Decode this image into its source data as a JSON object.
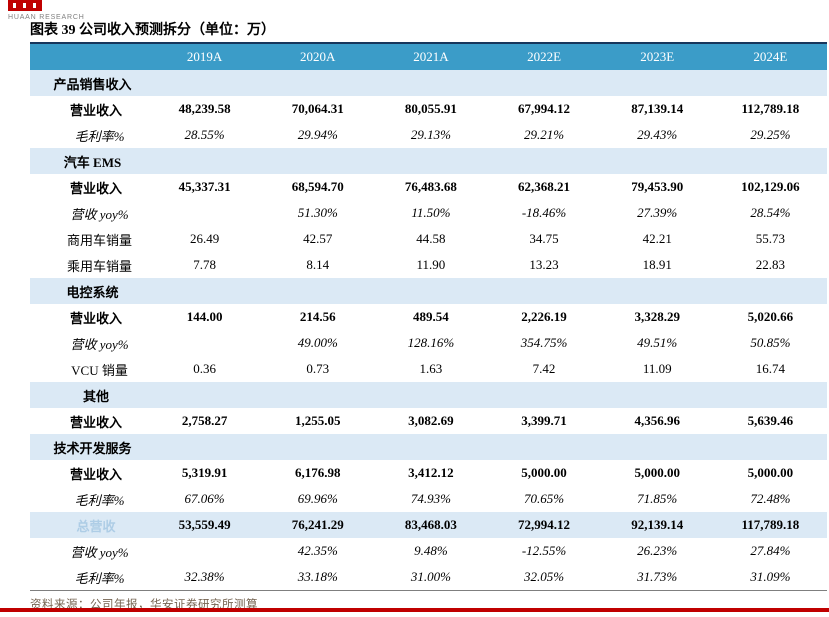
{
  "brand": {
    "name": "HUAAN RESEARCH",
    "logo_color": "#C00000"
  },
  "title": "图表 39 公司收入预测拆分（单位：万）",
  "colors": {
    "accent_red": "#C00000",
    "header_blue": "#3B9CC8",
    "band_light_blue": "#DBE9F5",
    "table_top_border": "#16365C"
  },
  "table": {
    "columns": [
      "",
      "2019A",
      "2020A",
      "2021A",
      "2022E",
      "2023E",
      "2024E"
    ],
    "rows": [
      {
        "type": "section",
        "indent": 0,
        "label": "产品销售收入",
        "values": [
          "",
          "",
          "",
          "",
          "",
          ""
        ]
      },
      {
        "type": "bold",
        "indent": 1,
        "label": "营业收入",
        "values": [
          "48,239.58",
          "70,064.31",
          "80,055.91",
          "67,994.12",
          "87,139.14",
          "112,789.18"
        ]
      },
      {
        "type": "italic",
        "indent": 2,
        "label": "毛利率%",
        "values": [
          "28.55%",
          "29.94%",
          "29.13%",
          "29.21%",
          "29.43%",
          "29.25%"
        ]
      },
      {
        "type": "section",
        "indent": 0,
        "label": "汽车 EMS",
        "values": [
          "",
          "",
          "",
          "",
          "",
          ""
        ]
      },
      {
        "type": "bold",
        "indent": 1,
        "label": "营业收入",
        "values": [
          "45,337.31",
          "68,594.70",
          "76,483.68",
          "62,368.21",
          "79,453.90",
          "102,129.06"
        ]
      },
      {
        "type": "italic",
        "indent": 2,
        "label": "营收 yoy%",
        "values": [
          "",
          "51.30%",
          "11.50%",
          "-18.46%",
          "27.39%",
          "28.54%"
        ]
      },
      {
        "type": "plain",
        "indent": 2,
        "label": "商用车销量",
        "values": [
          "26.49",
          "42.57",
          "44.58",
          "34.75",
          "42.21",
          "55.73"
        ]
      },
      {
        "type": "plain",
        "indent": 2,
        "label": "乘用车销量",
        "values": [
          "7.78",
          "8.14",
          "11.90",
          "13.23",
          "18.91",
          "22.83"
        ]
      },
      {
        "type": "section",
        "indent": 0,
        "label": "电控系统",
        "values": [
          "",
          "",
          "",
          "",
          "",
          ""
        ]
      },
      {
        "type": "bold",
        "indent": 1,
        "label": "营业收入",
        "values": [
          "144.00",
          "214.56",
          "489.54",
          "2,226.19",
          "3,328.29",
          "5,020.66"
        ]
      },
      {
        "type": "italic",
        "indent": 2,
        "label": "营收 yoy%",
        "values": [
          "",
          "49.00%",
          "128.16%",
          "354.75%",
          "49.51%",
          "50.85%"
        ]
      },
      {
        "type": "plain",
        "indent": 2,
        "label": "VCU 销量",
        "values": [
          "0.36",
          "0.73",
          "1.63",
          "7.42",
          "11.09",
          "16.74"
        ]
      },
      {
        "type": "section",
        "indent": 1,
        "label": "其他",
        "values": [
          "",
          "",
          "",
          "",
          "",
          ""
        ]
      },
      {
        "type": "bold",
        "indent": 1,
        "label": "营业收入",
        "values": [
          "2,758.27",
          "1,255.05",
          "3,082.69",
          "3,399.71",
          "4,356.96",
          "5,639.46"
        ]
      },
      {
        "type": "section",
        "indent": 0,
        "label": "技术开发服务",
        "values": [
          "",
          "",
          "",
          "",
          "",
          ""
        ]
      },
      {
        "type": "bold",
        "indent": 1,
        "label": "营业收入",
        "values": [
          "5,319.91",
          "6,176.98",
          "3,412.12",
          "5,000.00",
          "5,000.00",
          "5,000.00"
        ]
      },
      {
        "type": "italic",
        "indent": 2,
        "label": "毛利率%",
        "values": [
          "67.06%",
          "69.96%",
          "74.93%",
          "70.65%",
          "71.85%",
          "72.48%"
        ]
      },
      {
        "type": "total",
        "indent": 1,
        "label": "总营收",
        "values": [
          "53,559.49",
          "76,241.29",
          "83,468.03",
          "72,994.12",
          "92,139.14",
          "117,789.18"
        ]
      },
      {
        "type": "italic",
        "indent": 2,
        "label": "营收 yoy%",
        "values": [
          "",
          "42.35%",
          "9.48%",
          "-12.55%",
          "26.23%",
          "27.84%"
        ]
      },
      {
        "type": "italic",
        "indent": 2,
        "label": "毛利率%",
        "values": [
          "32.38%",
          "33.18%",
          "31.00%",
          "32.05%",
          "31.73%",
          "31.09%"
        ]
      }
    ]
  },
  "footer": {
    "source": "资料来源：公司年报，华安证券研究所测算"
  }
}
